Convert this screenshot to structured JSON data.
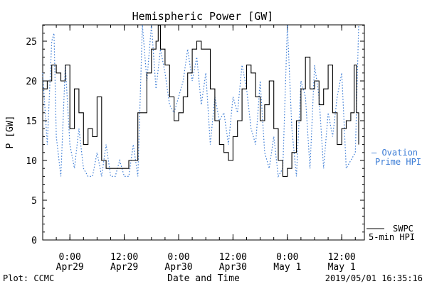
{
  "chart_data": {
    "type": "line",
    "title": "Hemispheric Power [GW]",
    "xlabel": "Date and Time",
    "ylabel": "P [GW]",
    "ylim": [
      0,
      30
    ],
    "yticks": [
      0,
      5,
      10,
      15,
      20,
      25
    ],
    "xlim": [
      "2019-04-28 18:00",
      "2019-05-01 17:00"
    ],
    "xticks": [
      {
        "time": "2019-04-29 00:00",
        "line1": "0:00",
        "line2": "Apr29"
      },
      {
        "time": "2019-04-29 12:00",
        "line1": "12:00",
        "line2": "Apr29"
      },
      {
        "time": "2019-04-30 00:00",
        "line1": "0:00",
        "line2": "Apr30"
      },
      {
        "time": "2019-04-30 12:00",
        "line1": "12:00",
        "line2": "Apr30"
      },
      {
        "time": "2019-05-01 00:00",
        "line1": "0:00",
        "line2": "May 1"
      },
      {
        "time": "2019-05-01 12:00",
        "line1": "12:00",
        "line2": "May 1"
      }
    ],
    "series": [
      {
        "name": "SWPC 5-min HPI",
        "legend": [
          "SWPC",
          "5-min HPI"
        ],
        "color": "#000000",
        "style": "solid",
        "points": [
          [
            "2019-04-28 18:00",
            19
          ],
          [
            "2019-04-28 19:00",
            20
          ],
          [
            "2019-04-28 20:00",
            22
          ],
          [
            "2019-04-28 21:00",
            21
          ],
          [
            "2019-04-28 22:00",
            20
          ],
          [
            "2019-04-28 23:00",
            22
          ],
          [
            "2019-04-29 00:00",
            14
          ],
          [
            "2019-04-29 01:00",
            19
          ],
          [
            "2019-04-29 02:00",
            16
          ],
          [
            "2019-04-29 03:00",
            12
          ],
          [
            "2019-04-29 04:00",
            14
          ],
          [
            "2019-04-29 05:00",
            13
          ],
          [
            "2019-04-29 06:00",
            18
          ],
          [
            "2019-04-29 07:00",
            10
          ],
          [
            "2019-04-29 08:00",
            9
          ],
          [
            "2019-04-29 10:00",
            9
          ],
          [
            "2019-04-29 12:00",
            9
          ],
          [
            "2019-04-29 13:00",
            10
          ],
          [
            "2019-04-29 15:00",
            16
          ],
          [
            "2019-04-29 17:00",
            21
          ],
          [
            "2019-04-29 18:00",
            24
          ],
          [
            "2019-04-29 19:00",
            25
          ],
          [
            "2019-04-29 19:30",
            27
          ],
          [
            "2019-04-29 20:00",
            24
          ],
          [
            "2019-04-29 21:00",
            22
          ],
          [
            "2019-04-29 22:00",
            18
          ],
          [
            "2019-04-29 23:00",
            15
          ],
          [
            "2019-04-30 00:00",
            16
          ],
          [
            "2019-04-30 01:00",
            18
          ],
          [
            "2019-04-30 02:00",
            21
          ],
          [
            "2019-04-30 03:00",
            24
          ],
          [
            "2019-04-30 04:00",
            25
          ],
          [
            "2019-04-30 05:00",
            24
          ],
          [
            "2019-04-30 06:00",
            24
          ],
          [
            "2019-04-30 07:00",
            19
          ],
          [
            "2019-04-30 08:00",
            15
          ],
          [
            "2019-04-30 09:00",
            12
          ],
          [
            "2019-04-30 10:00",
            11
          ],
          [
            "2019-04-30 11:00",
            10
          ],
          [
            "2019-04-30 12:00",
            13
          ],
          [
            "2019-04-30 13:00",
            15
          ],
          [
            "2019-04-30 14:00",
            19
          ],
          [
            "2019-04-30 15:00",
            22
          ],
          [
            "2019-04-30 16:00",
            21
          ],
          [
            "2019-04-30 17:00",
            18
          ],
          [
            "2019-04-30 18:00",
            15
          ],
          [
            "2019-04-30 19:00",
            17
          ],
          [
            "2019-04-30 20:00",
            20
          ],
          [
            "2019-04-30 21:00",
            14
          ],
          [
            "2019-04-30 22:00",
            10
          ],
          [
            "2019-04-30 23:00",
            8
          ],
          [
            "2019-05-01 00:00",
            9
          ],
          [
            "2019-05-01 01:00",
            11
          ],
          [
            "2019-05-01 02:00",
            15
          ],
          [
            "2019-05-01 03:00",
            19
          ],
          [
            "2019-05-01 04:00",
            23
          ],
          [
            "2019-05-01 05:00",
            19
          ],
          [
            "2019-05-01 06:00",
            20
          ],
          [
            "2019-05-01 07:00",
            17
          ],
          [
            "2019-05-01 08:00",
            19
          ],
          [
            "2019-05-01 09:00",
            22
          ],
          [
            "2019-05-01 10:00",
            16
          ],
          [
            "2019-05-01 11:00",
            12
          ],
          [
            "2019-05-01 12:00",
            14
          ],
          [
            "2019-05-01 13:00",
            15
          ],
          [
            "2019-05-01 14:00",
            16
          ],
          [
            "2019-05-01 14:45",
            22
          ],
          [
            "2019-05-01 15:15",
            16
          ],
          [
            "2019-05-01 15:45",
            12
          ]
        ]
      },
      {
        "name": "Ovation Prime HPI",
        "legend": [
          "— Ovation",
          "Prime HPI"
        ],
        "color": "#3a7bd5",
        "style": "dotted",
        "points": [
          [
            "2019-04-28 18:00",
            21
          ],
          [
            "2019-04-28 19:00",
            12
          ],
          [
            "2019-04-28 20:00",
            25
          ],
          [
            "2019-04-28 20:30",
            26
          ],
          [
            "2019-04-28 21:00",
            13
          ],
          [
            "2019-04-28 22:00",
            8
          ],
          [
            "2019-04-28 23:00",
            22
          ],
          [
            "2019-04-29 00:00",
            12
          ],
          [
            "2019-04-29 01:00",
            9
          ],
          [
            "2019-04-29 02:00",
            14
          ],
          [
            "2019-04-29 03:00",
            9
          ],
          [
            "2019-04-29 04:00",
            8
          ],
          [
            "2019-04-29 05:00",
            8
          ],
          [
            "2019-04-29 06:00",
            11
          ],
          [
            "2019-04-29 07:00",
            8
          ],
          [
            "2019-04-29 08:00",
            12
          ],
          [
            "2019-04-29 09:00",
            8
          ],
          [
            "2019-04-29 10:00",
            8
          ],
          [
            "2019-04-29 11:00",
            10
          ],
          [
            "2019-04-29 12:00",
            8
          ],
          [
            "2019-04-29 13:00",
            8
          ],
          [
            "2019-04-29 14:00",
            12
          ],
          [
            "2019-04-29 15:00",
            8
          ],
          [
            "2019-04-29 16:00",
            29
          ],
          [
            "2019-04-29 17:00",
            20
          ],
          [
            "2019-04-29 18:00",
            28
          ],
          [
            "2019-04-29 19:00",
            19
          ],
          [
            "2019-04-29 20:00",
            24
          ],
          [
            "2019-04-29 21:00",
            21
          ],
          [
            "2019-04-29 22:00",
            17
          ],
          [
            "2019-04-29 23:00",
            16
          ],
          [
            "2019-04-30 00:00",
            18
          ],
          [
            "2019-04-30 01:00",
            20
          ],
          [
            "2019-04-30 02:00",
            24
          ],
          [
            "2019-04-30 03:00",
            20
          ],
          [
            "2019-04-30 04:00",
            23
          ],
          [
            "2019-04-30 05:00",
            17
          ],
          [
            "2019-04-30 06:00",
            21
          ],
          [
            "2019-04-30 07:00",
            12
          ],
          [
            "2019-04-30 08:00",
            18
          ],
          [
            "2019-04-30 09:00",
            15
          ],
          [
            "2019-04-30 10:00",
            16
          ],
          [
            "2019-04-30 11:00",
            12
          ],
          [
            "2019-04-30 12:00",
            18
          ],
          [
            "2019-04-30 13:00",
            16
          ],
          [
            "2019-04-30 14:00",
            22
          ],
          [
            "2019-04-30 15:00",
            19
          ],
          [
            "2019-04-30 16:00",
            14
          ],
          [
            "2019-04-30 17:00",
            12
          ],
          [
            "2019-04-30 18:00",
            20
          ],
          [
            "2019-04-30 19:00",
            11
          ],
          [
            "2019-04-30 20:00",
            9
          ],
          [
            "2019-04-30 21:00",
            13
          ],
          [
            "2019-04-30 22:00",
            8
          ],
          [
            "2019-04-30 23:00",
            9
          ],
          [
            "2019-05-01 00:00",
            28
          ],
          [
            "2019-05-01 01:00",
            14
          ],
          [
            "2019-05-01 02:00",
            8
          ],
          [
            "2019-05-01 03:00",
            20
          ],
          [
            "2019-05-01 04:00",
            18
          ],
          [
            "2019-05-01 05:00",
            9
          ],
          [
            "2019-05-01 06:00",
            22
          ],
          [
            "2019-05-01 07:00",
            18
          ],
          [
            "2019-05-01 08:00",
            9
          ],
          [
            "2019-05-01 09:00",
            16
          ],
          [
            "2019-05-01 10:00",
            13
          ],
          [
            "2019-05-01 11:00",
            18
          ],
          [
            "2019-05-01 12:00",
            21
          ],
          [
            "2019-05-01 13:00",
            9
          ],
          [
            "2019-05-01 14:00",
            10
          ],
          [
            "2019-05-01 15:00",
            11
          ],
          [
            "2019-05-01 15:45",
            30
          ]
        ]
      }
    ],
    "grid": false
  },
  "footer": {
    "left": "Plot: CCMC",
    "right": "2019/05/01 16:35:16"
  }
}
